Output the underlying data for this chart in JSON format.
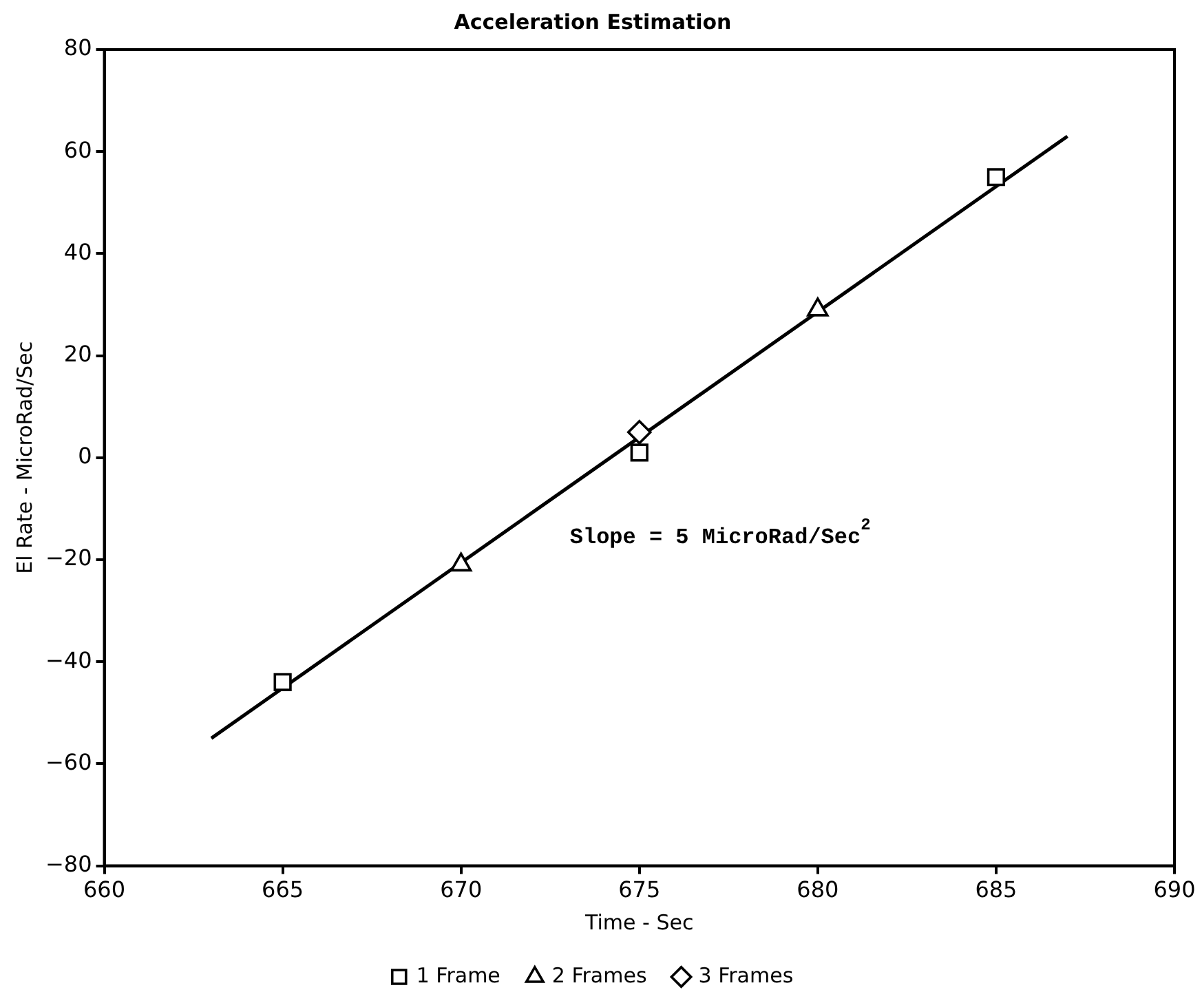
{
  "chart_data": {
    "type": "scatter",
    "title": "Acceleration Estimation",
    "xlabel": "Time - Sec",
    "ylabel": "El Rate - MicroRad/Sec",
    "xlim": [
      660,
      690
    ],
    "xticks": [
      660,
      665,
      670,
      675,
      680,
      685,
      690
    ],
    "ylim": [
      -80,
      80
    ],
    "yticks": [
      -80,
      -60,
      -40,
      -20,
      0,
      20,
      40,
      60,
      80
    ],
    "grid": false,
    "legend": "bottom",
    "series": [
      {
        "name": "1 Frame",
        "color": "#000000",
        "marker": "square",
        "x": [
          665,
          675,
          685
        ],
        "values": [
          -44,
          1,
          55
        ]
      },
      {
        "name": "2 Frames",
        "color": "#000000",
        "marker": "triangle",
        "x": [
          670,
          680
        ],
        "values": [
          -21,
          29
        ]
      },
      {
        "name": "3 Frames",
        "color": "#000000",
        "marker": "diamond",
        "x": [
          675
        ],
        "values": [
          5
        ]
      },
      {
        "type": "line",
        "color": "#000000",
        "marker": "none",
        "x": [
          663,
          687
        ],
        "values": [
          -55,
          63
        ]
      }
    ],
    "annotations": [
      "Slope = 5 MicroRad/Sec$^{2}$"
    ]
  }
}
